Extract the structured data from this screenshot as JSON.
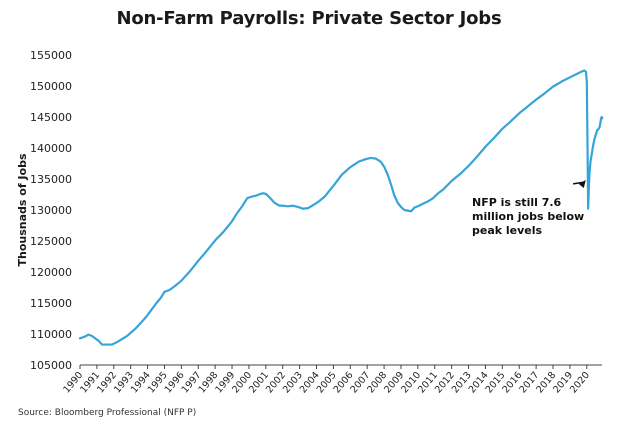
{
  "chart_data": {
    "type": "line",
    "title": "Non-Farm Payrolls: Private Sector Jobs",
    "xlabel": "",
    "ylabel": "Thousnads of Jobs",
    "ylim": [
      105000,
      155000
    ],
    "xlim": [
      1990.0,
      2020.9
    ],
    "yticks": [
      105000,
      110000,
      115000,
      120000,
      125000,
      130000,
      135000,
      140000,
      145000,
      150000,
      155000
    ],
    "xtick_labels": [
      "1990",
      "1991",
      "1992",
      "1993",
      "1994",
      "1995",
      "1996",
      "1997",
      "1998",
      "1999",
      "2000",
      "2001",
      "2002",
      "2003",
      "2004",
      "2005",
      "2006",
      "2007",
      "2008",
      "2009",
      "2010",
      "2011",
      "2012",
      "2013",
      "2014",
      "2015",
      "2016",
      "2017",
      "2018",
      "2019",
      "2020"
    ],
    "grid": false,
    "legend": "none",
    "line_color": "#35a4d9",
    "series": [
      {
        "x": [
          1990.0,
          1990.3,
          1990.5,
          1990.7,
          1990.9,
          1991.1,
          1991.3,
          1991.6,
          1991.9,
          1992.2,
          1992.5,
          1992.8,
          1993.0,
          1993.3,
          1993.6,
          1993.9,
          1994.2,
          1994.5,
          1994.8,
          1995.0,
          1995.3,
          1995.6,
          1996.0,
          1996.5,
          1997.0,
          1997.5,
          1998.0,
          1998.5,
          1998.8,
          1999.0,
          1999.3,
          1999.6,
          1999.9,
          2000.1,
          2000.4,
          2000.6,
          2000.8,
          2001.0,
          2001.2,
          2001.5,
          2001.8,
          2002.0,
          2002.3,
          2002.6,
          2002.9,
          2003.2,
          2003.5,
          2003.8,
          2004.1,
          2004.5,
          2005.0,
          2005.5,
          2006.0,
          2006.5,
          2006.9,
          2007.2,
          2007.5,
          2007.8,
          2008.0,
          2008.2,
          2008.4,
          2008.6,
          2008.8,
          2009.0,
          2009.2,
          2009.4,
          2009.6,
          2009.8,
          2010.0,
          2010.3,
          2010.6,
          2010.9,
          2011.2,
          2011.5,
          2012.0,
          2012.5,
          2013.0,
          2013.5,
          2014.0,
          2014.5,
          2015.0,
          2015.5,
          2016.0,
          2016.5,
          2017.0,
          2017.5,
          2018.0,
          2018.5,
          2019.0,
          2019.3,
          2019.6,
          2019.85,
          2019.95,
          2020.0,
          2020.04,
          2020.08,
          2020.12,
          2020.16,
          2020.22,
          2020.28,
          2020.35,
          2020.42,
          2020.48,
          2020.55,
          2020.62,
          2020.68,
          2020.75,
          2020.8,
          2020.84,
          2020.88,
          2020.92
        ],
        "y": [
          109300,
          109600,
          109900,
          109700,
          109300,
          108900,
          108300,
          108300,
          108300,
          108700,
          109200,
          109700,
          110200,
          110900,
          111800,
          112700,
          113800,
          114900,
          115900,
          116800,
          117100,
          117700,
          118600,
          120100,
          121800,
          123400,
          125100,
          126500,
          127500,
          128200,
          129500,
          130600,
          131900,
          132100,
          132300,
          132500,
          132700,
          132600,
          132100,
          131200,
          130700,
          130700,
          130600,
          130700,
          130500,
          130200,
          130300,
          130800,
          131300,
          132200,
          133900,
          135700,
          136900,
          137800,
          138200,
          138400,
          138300,
          137800,
          137000,
          135800,
          134200,
          132400,
          131200,
          130500,
          130000,
          129900,
          129800,
          130400,
          130600,
          131000,
          131400,
          131900,
          132700,
          133300,
          134700,
          135800,
          137100,
          138600,
          140200,
          141600,
          143100,
          144300,
          145600,
          146700,
          147800,
          148800,
          149900,
          150700,
          151400,
          151800,
          152200,
          152500,
          152300,
          150700,
          141000,
          130200,
          133500,
          136000,
          137800,
          138800,
          140000,
          141000,
          141700,
          142300,
          142900,
          143000,
          143300,
          144000,
          144700,
          145000,
          144800
        ]
      }
    ],
    "annotations": [
      {
        "lines": [
          "NFP is still 7.6",
          "million jobs below",
          "peak levels"
        ],
        "arrow_to": [
          2020.0,
          135000
        ],
        "arrow_from": [
          2019.78,
          136800
        ]
      }
    ]
  },
  "source_text": "Source: Bloomberg Professional (NFP P)"
}
